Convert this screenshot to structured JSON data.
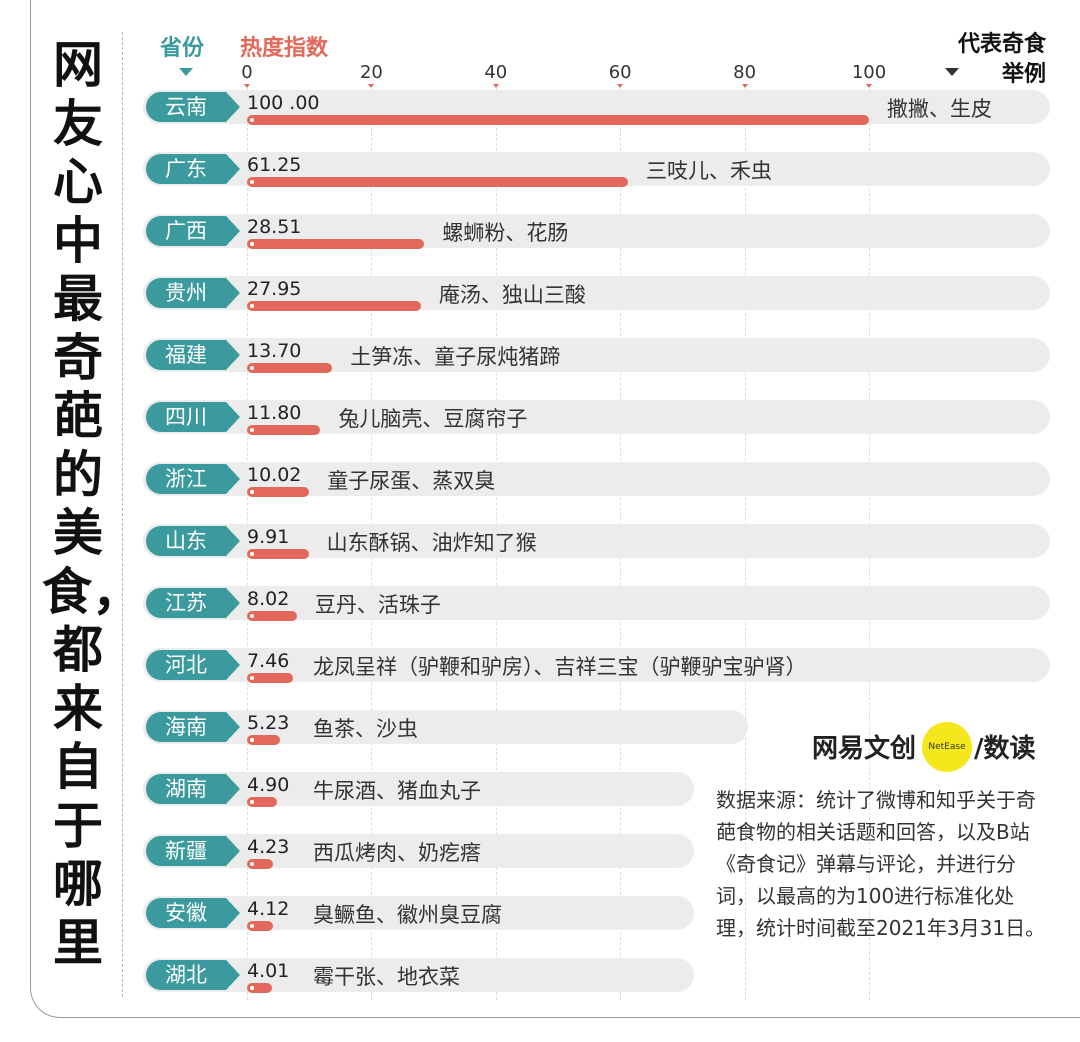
{
  "title": "网友心中最奇葩的美食，都来自于哪里",
  "headers": {
    "province": "省份",
    "heat": "热度指数",
    "food_line1": "代表奇食",
    "food_line2": "举例"
  },
  "logo": {
    "left": "网易文创",
    "badge": "NetEase",
    "right": "/数读"
  },
  "source": "数据来源：统计了微博和知乎关于奇葩食物的相关话题和回答，以及B站《奇食记》弹幕与评论，并进行分词，以最高的为100进行标准化处理，统计时间截至2021年3月31日。",
  "colors": {
    "teal": "#3a9a9d",
    "bar": "#e2685b",
    "track": "#ececec"
  },
  "chart_data": {
    "type": "bar",
    "orientation": "horizontal",
    "title": "网友心中最奇葩的美食，都来自于哪里",
    "xlabel": "热度指数",
    "ylabel": "省份",
    "xlim": [
      0,
      100
    ],
    "xticks": [
      "0",
      "20",
      "40",
      "60",
      "80",
      "100"
    ],
    "categories": [
      "云南",
      "广东",
      "广西",
      "贵州",
      "福建",
      "四川",
      "浙江",
      "山东",
      "江苏",
      "河北",
      "海南",
      "湖南",
      "新疆",
      "安徽",
      "湖北"
    ],
    "values": [
      100.0,
      61.25,
      28.51,
      27.95,
      13.7,
      11.8,
      10.02,
      9.91,
      8.02,
      7.46,
      5.23,
      4.9,
      4.23,
      4.12,
      4.01
    ],
    "value_labels": [
      "100 .00",
      "61.25",
      "28.51",
      "27.95",
      "13.70",
      "11.80",
      "10.02",
      "9.91",
      "8.02",
      "7.46",
      "5.23",
      "4.90",
      "4.23",
      "4.12",
      "4.01"
    ],
    "foods": [
      "撒撇、生皮",
      "三吱儿、禾虫",
      "螺蛳粉、花肠",
      "庵汤、独山三酸",
      "土笋冻、童子尿炖猪蹄",
      "兔儿脑壳、豆腐帘子",
      "童子尿蛋、蒸双臭",
      "山东酥锅、油炸知了猴",
      "豆丹、活珠子",
      "龙凤呈祥（驴鞭和驴房）、吉祥三宝（驴鞭驴宝驴肾）",
      "鱼茶、沙虫",
      "牛尿酒、猪血丸子",
      "西瓜烤肉、奶疙瘩",
      "臭鳜鱼、徽州臭豆腐",
      "霉干张、地衣菜"
    ]
  }
}
